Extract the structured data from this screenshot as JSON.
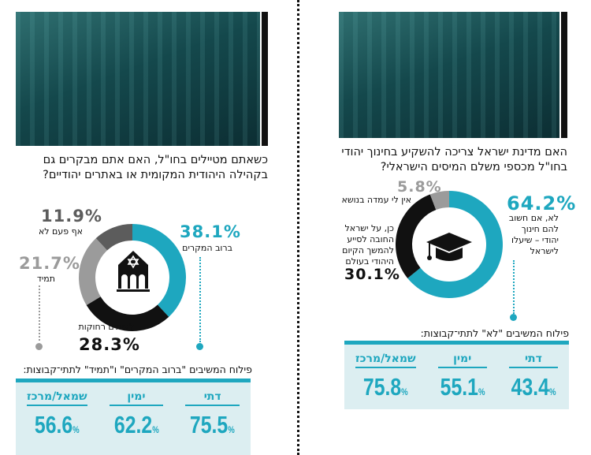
{
  "colors": {
    "teal": "#1ea7bf",
    "black": "#111111",
    "gray_light": "#9b9b9b",
    "gray_dark": "#5c5c5c"
  },
  "left": {
    "title": "כשאתם מטיילים בחו\"ל, האם אתם מבקרים גם בקהילה היהודית המקומית או באתרים יהודיים?",
    "icon": "synagogue-icon",
    "subtitle": "פילוח המשיבים \"ברוב המקרים\" ו\"תמיד\" לתתי־קבוצות:",
    "table": [
      {
        "label": "דתי",
        "value": "75.5"
      },
      {
        "label": "ימין",
        "value": "62.2"
      },
      {
        "label": "שמאל/מרכז",
        "value": "56.6"
      }
    ],
    "pct_sign": "%"
  },
  "right": {
    "title": "האם מדינת ישראל צריכה להשקיע בחינוך יהודי בחו\"ל מכספי משלם המיסים הישראלי?",
    "icon": "graduation-cap-icon",
    "subtitle": "פילוח המשיבים \"לא\" לתתי־קבוצות:",
    "table": [
      {
        "label": "דתי",
        "value": "43.4"
      },
      {
        "label": "ימין",
        "value": "55.1"
      },
      {
        "label": "שמאל/מרכז",
        "value": "75.8"
      }
    ],
    "pct_sign": "%"
  },
  "chart_data": [
    {
      "type": "pie",
      "donut": true,
      "title": "כשאתם מטיילים בחו\"ל, האם אתם מבקרים גם בקהילה היהודית המקומית או באתרים יהודיים?",
      "slices": [
        {
          "label": "ברוב המקרים",
          "value": 38.1,
          "text": "38.1%",
          "color": "#1ea7bf"
        },
        {
          "label": "לעיתים רחוקות",
          "value": 28.3,
          "text": "28.3%",
          "color": "#111111"
        },
        {
          "label": "תמיד",
          "value": 21.7,
          "text": "21.7%",
          "color": "#9b9b9b"
        },
        {
          "label": "אף פעם לא",
          "value": 11.9,
          "text": "11.9%",
          "color": "#5c5c5c"
        }
      ]
    },
    {
      "type": "pie",
      "donut": true,
      "title": "האם מדינת ישראל צריכה להשקיע בחינוך יהודי בחו\"ל מכספי משלם המיסים הישראלי?",
      "slices": [
        {
          "label": "לא, אם חשוב להם חינוך יהודי – שיעלו לישראל",
          "value": 64.2,
          "text": "64.2%",
          "color": "#1ea7bf"
        },
        {
          "label": "כן, על ישראל החובה לסייע להמשך הקיום היהודי בעולם",
          "value": 30.1,
          "text": "30.1%",
          "color": "#111111"
        },
        {
          "label": "אין לי עמדה בנושא",
          "value": 5.8,
          "text": "5.8%",
          "color": "#9b9b9b"
        }
      ]
    }
  ]
}
